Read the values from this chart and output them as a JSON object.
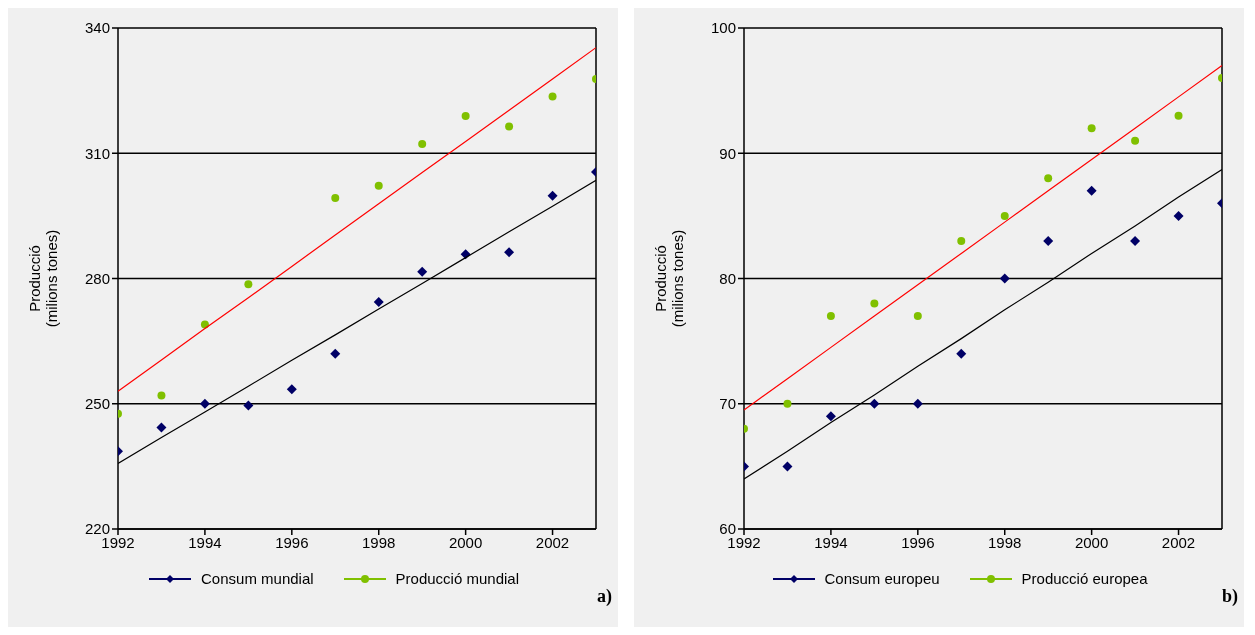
{
  "chart_data": [
    {
      "type": "scatter",
      "ylabel": "Producció\n(milions tones)",
      "xlim": [
        1992,
        2003
      ],
      "xticks": [
        1992,
        1994,
        1996,
        1998,
        2000,
        2002
      ],
      "ylim": [
        220,
        340
      ],
      "yticks": [
        220,
        250,
        280,
        310,
        340
      ],
      "grid": "y",
      "legend": "bottom",
      "annotations": [
        "a)"
      ],
      "x": [
        1992,
        1993,
        1994,
        1995,
        1996,
        1997,
        1998,
        1999,
        2000,
        2001,
        2002,
        2003
      ],
      "series": [
        {
          "name": "Consum mundial",
          "color": "#000066",
          "marker": "diamond",
          "values": [
            238.6,
            244.3,
            250,
            249.6,
            253.5,
            262,
            274.4,
            281.6,
            285.8,
            286.3,
            299.8,
            305.5
          ]
        },
        {
          "name": "Producció mundial",
          "color": "#80c000",
          "marker": "circle",
          "values": [
            247.6,
            252,
            269,
            278.6,
            null,
            299.3,
            302.2,
            312.2,
            318.9,
            316.4,
            323.6,
            327.8
          ]
        },
        {
          "type": "line",
          "color": "#ff0000",
          "marker": "none",
          "values": [
            253,
            260.5,
            268.0,
            275.4,
            282.9,
            290.4,
            297.9,
            305.4,
            312.8,
            320.3,
            327.8,
            335.3
          ]
        },
        {
          "type": "line",
          "color": "#000000",
          "marker": "none",
          "values": [
            235.7,
            241.9,
            248.0,
            254.2,
            260.4,
            266.5,
            272.7,
            278.8,
            285.0,
            291.2,
            297.3,
            303.5
          ]
        }
      ]
    },
    {
      "type": "scatter",
      "ylabel": "Producció\n(milions tones)",
      "xlim": [
        1992,
        2003
      ],
      "xticks": [
        1992,
        1994,
        1996,
        1998,
        2000,
        2002
      ],
      "ylim": [
        60,
        100
      ],
      "yticks": [
        60,
        70,
        80,
        90,
        100
      ],
      "grid": "y",
      "legend": "bottom",
      "annotations": [
        "b)"
      ],
      "x": [
        1992,
        1993,
        1994,
        1995,
        1996,
        1997,
        1998,
        1999,
        2000,
        2001,
        2002,
        2003
      ],
      "series": [
        {
          "name": "Consum europeu",
          "color": "#000066",
          "marker": "diamond",
          "values": [
            65,
            65,
            69,
            70,
            70,
            74,
            80,
            83,
            87,
            83,
            85,
            86
          ]
        },
        {
          "name": "Producció europea",
          "color": "#80c000",
          "marker": "circle",
          "values": [
            68,
            70,
            77,
            78,
            77,
            83,
            85,
            88,
            92,
            91,
            93,
            96
          ]
        },
        {
          "type": "line",
          "color": "#ff0000",
          "marker": "none",
          "values": [
            69.5,
            72,
            74.5,
            77,
            79.5,
            82,
            84.5,
            87,
            89.5,
            92,
            94.5,
            97
          ]
        },
        {
          "type": "line",
          "color": "#000000",
          "marker": "none",
          "values": [
            64,
            66.2,
            68.5,
            70.7,
            73.0,
            75.2,
            77.5,
            79.7,
            82.0,
            84.2,
            86.5,
            88.7
          ]
        }
      ]
    }
  ]
}
